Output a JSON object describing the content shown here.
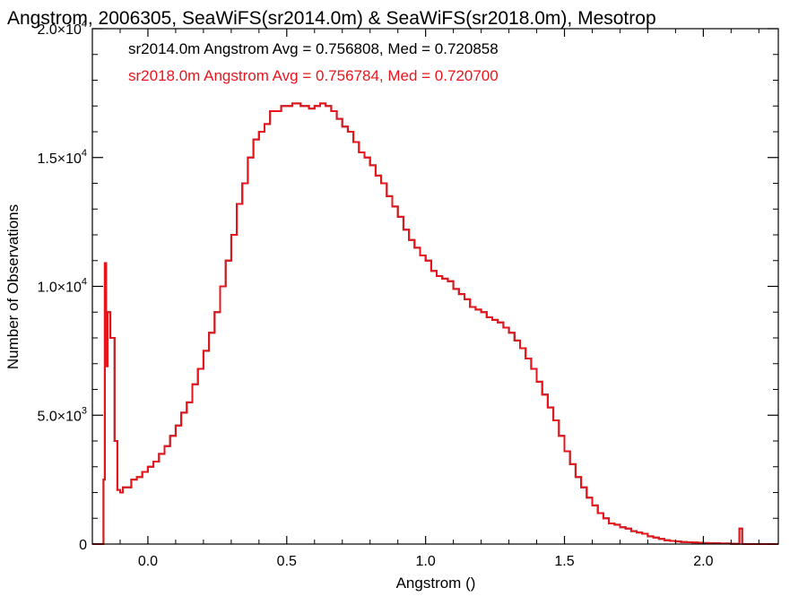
{
  "chart_data": {
    "type": "line",
    "title": "Angstrom, 2006305, SeaWiFS(sr2014.0m) & SeaWiFS(sr2018.0m), Mesotrop",
    "xlabel": "Angstrom ()",
    "ylabel": "Number of Observations",
    "xlim": [
      -0.2,
      2.27
    ],
    "ylim": [
      0,
      20000
    ],
    "x_ticks": [
      {
        "value": 0.0,
        "label": "0.0"
      },
      {
        "value": 0.5,
        "label": "0.5"
      },
      {
        "value": 1.0,
        "label": "1.0"
      },
      {
        "value": 1.5,
        "label": "1.5"
      },
      {
        "value": 2.0,
        "label": "2.0"
      }
    ],
    "y_ticks": [
      {
        "value": 0,
        "mant": "0",
        "exp": ""
      },
      {
        "value": 5000,
        "mant": "5.0×10",
        "exp": "3"
      },
      {
        "value": 10000,
        "mant": "1.0×10",
        "exp": "4"
      },
      {
        "value": 15000,
        "mant": "1.5×10",
        "exp": "4"
      },
      {
        "value": 20000,
        "mant": "2.0×10",
        "exp": "4"
      }
    ],
    "annotations": [
      {
        "text": "sr2014.0m Angstrom Avg = 0.756808, Med = 0.720858",
        "color": "#000000"
      },
      {
        "text": "sr2018.0m Angstrom Avg = 0.756784, Med = 0.720700",
        "color": "#e8161c"
      }
    ],
    "series": [
      {
        "color": "#000000",
        "x": [
          -0.2,
          -0.19,
          -0.18,
          -0.17,
          -0.16,
          -0.155,
          -0.15,
          -0.145,
          -0.14,
          -0.135,
          -0.13,
          -0.12,
          -0.11,
          -0.1,
          -0.09,
          -0.08,
          -0.06,
          -0.04,
          -0.02,
          0.0,
          0.02,
          0.04,
          0.06,
          0.08,
          0.1,
          0.12,
          0.14,
          0.16,
          0.18,
          0.2,
          0.22,
          0.24,
          0.26,
          0.28,
          0.3,
          0.32,
          0.34,
          0.36,
          0.38,
          0.4,
          0.42,
          0.44,
          0.46,
          0.48,
          0.5,
          0.52,
          0.55,
          0.58,
          0.6,
          0.62,
          0.64,
          0.66,
          0.68,
          0.7,
          0.72,
          0.74,
          0.76,
          0.78,
          0.8,
          0.82,
          0.84,
          0.86,
          0.88,
          0.9,
          0.92,
          0.94,
          0.96,
          0.98,
          1.0,
          1.02,
          1.04,
          1.06,
          1.08,
          1.1,
          1.12,
          1.14,
          1.16,
          1.18,
          1.2,
          1.22,
          1.24,
          1.26,
          1.28,
          1.3,
          1.32,
          1.34,
          1.36,
          1.38,
          1.4,
          1.42,
          1.44,
          1.46,
          1.48,
          1.5,
          1.52,
          1.54,
          1.56,
          1.58,
          1.6,
          1.62,
          1.64,
          1.66,
          1.68,
          1.7,
          1.72,
          1.74,
          1.76,
          1.78,
          1.8,
          1.82,
          1.84,
          1.86,
          1.88,
          1.9,
          1.92,
          1.94,
          1.96,
          1.98,
          2.0,
          2.02,
          2.04,
          2.06,
          2.08,
          2.1,
          2.12,
          2.13,
          2.14,
          2.15,
          2.2,
          2.27
        ],
        "values": [
          0,
          0,
          0,
          0,
          2500,
          10900,
          6900,
          9000,
          9000,
          8000,
          8000,
          4000,
          2100,
          2000,
          2200,
          2200,
          2500,
          2600,
          2800,
          3000,
          3200,
          3500,
          3800,
          4200,
          4600,
          5100,
          5500,
          6200,
          6800,
          7500,
          8200,
          9000,
          10000,
          11000,
          12000,
          13200,
          14000,
          15000,
          15700,
          16000,
          16300,
          16800,
          16800,
          17000,
          17000,
          17100,
          17000,
          16900,
          17000,
          17100,
          17000,
          16800,
          16500,
          16200,
          16000,
          15600,
          15200,
          15000,
          14700,
          14300,
          14000,
          13500,
          13100,
          12700,
          12200,
          11800,
          11500,
          11200,
          11000,
          10600,
          10400,
          10300,
          10200,
          9900,
          9700,
          9500,
          9200,
          9100,
          9000,
          8800,
          8700,
          8600,
          8400,
          8200,
          7900,
          7600,
          7200,
          6800,
          6300,
          5800,
          5300,
          4800,
          4200,
          3600,
          3100,
          2600,
          2200,
          1800,
          1500,
          1200,
          1000,
          800,
          750,
          650,
          600,
          500,
          450,
          400,
          300,
          250,
          200,
          150,
          120,
          100,
          80,
          70,
          60,
          50,
          40,
          30,
          30,
          20,
          20,
          10,
          10,
          600,
          0,
          0,
          0,
          0
        ]
      },
      {
        "color": "#e8161c",
        "x": [
          -0.2,
          -0.19,
          -0.18,
          -0.17,
          -0.16,
          -0.155,
          -0.15,
          -0.145,
          -0.14,
          -0.135,
          -0.13,
          -0.12,
          -0.11,
          -0.1,
          -0.09,
          -0.08,
          -0.06,
          -0.04,
          -0.02,
          0.0,
          0.02,
          0.04,
          0.06,
          0.08,
          0.1,
          0.12,
          0.14,
          0.16,
          0.18,
          0.2,
          0.22,
          0.24,
          0.26,
          0.28,
          0.3,
          0.32,
          0.34,
          0.36,
          0.38,
          0.4,
          0.42,
          0.44,
          0.46,
          0.48,
          0.5,
          0.52,
          0.55,
          0.58,
          0.6,
          0.62,
          0.64,
          0.66,
          0.68,
          0.7,
          0.72,
          0.74,
          0.76,
          0.78,
          0.8,
          0.82,
          0.84,
          0.86,
          0.88,
          0.9,
          0.92,
          0.94,
          0.96,
          0.98,
          1.0,
          1.02,
          1.04,
          1.06,
          1.08,
          1.1,
          1.12,
          1.14,
          1.16,
          1.18,
          1.2,
          1.22,
          1.24,
          1.26,
          1.28,
          1.3,
          1.32,
          1.34,
          1.36,
          1.38,
          1.4,
          1.42,
          1.44,
          1.46,
          1.48,
          1.5,
          1.52,
          1.54,
          1.56,
          1.58,
          1.6,
          1.62,
          1.64,
          1.66,
          1.68,
          1.7,
          1.72,
          1.74,
          1.76,
          1.78,
          1.8,
          1.82,
          1.84,
          1.86,
          1.88,
          1.9,
          1.92,
          1.94,
          1.96,
          1.98,
          2.0,
          2.02,
          2.04,
          2.06,
          2.08,
          2.1,
          2.12,
          2.13,
          2.14,
          2.15,
          2.2,
          2.27
        ],
        "values": [
          0,
          0,
          0,
          0,
          2500,
          10900,
          6900,
          9000,
          9000,
          8000,
          8000,
          4000,
          2100,
          2000,
          2200,
          2200,
          2500,
          2600,
          2800,
          3000,
          3200,
          3500,
          3800,
          4200,
          4600,
          5100,
          5500,
          6200,
          6800,
          7500,
          8200,
          9000,
          10000,
          11000,
          12000,
          13200,
          14000,
          15000,
          15700,
          16000,
          16300,
          16800,
          16800,
          17000,
          17000,
          17100,
          17000,
          16900,
          17000,
          17100,
          17000,
          16800,
          16500,
          16200,
          16000,
          15600,
          15200,
          15000,
          14700,
          14300,
          14000,
          13500,
          13100,
          12700,
          12200,
          11800,
          11500,
          11200,
          11000,
          10600,
          10400,
          10300,
          10200,
          9900,
          9700,
          9500,
          9200,
          9100,
          9000,
          8800,
          8700,
          8600,
          8400,
          8200,
          7900,
          7600,
          7200,
          6800,
          6300,
          5800,
          5300,
          4800,
          4200,
          3600,
          3100,
          2600,
          2200,
          1800,
          1500,
          1200,
          1000,
          800,
          750,
          650,
          600,
          500,
          450,
          400,
          300,
          250,
          200,
          150,
          120,
          100,
          80,
          70,
          60,
          50,
          40,
          30,
          30,
          20,
          20,
          10,
          10,
          600,
          0,
          0,
          0,
          0
        ]
      }
    ]
  }
}
